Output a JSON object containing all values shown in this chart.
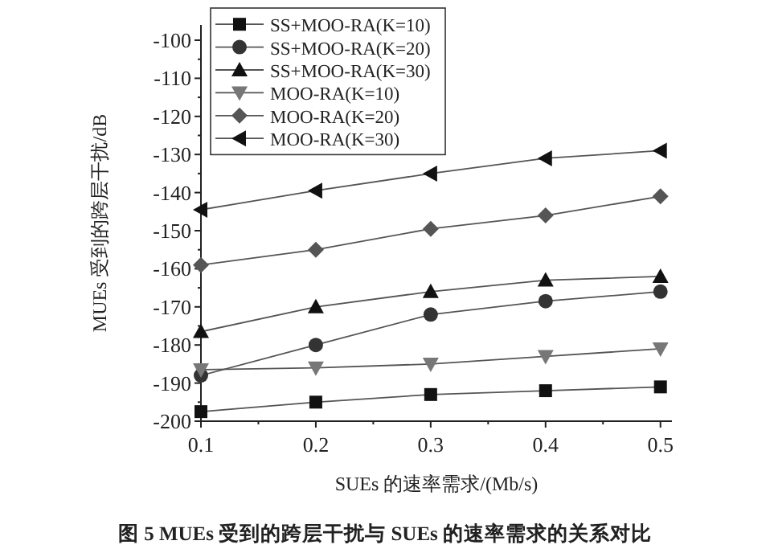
{
  "chart_data": {
    "type": "line",
    "title": "图 5  MUEs 受到的跨层干扰与 SUEs 的速率需求的关系对比",
    "xlabel": "SUEs 的速率需求/(Mb/s)",
    "ylabel": "MUEs 受到的跨层干扰/dB",
    "x": [
      0.1,
      0.2,
      0.3,
      0.4,
      0.5
    ],
    "series": [
      {
        "name": "SS+MOO-RA(K=10)",
        "color": "#111111",
        "marker": "square",
        "values": [
          -197.5,
          -195,
          -193,
          -192,
          -191
        ]
      },
      {
        "name": "SS+MOO-RA(K=20)",
        "color": "#333333",
        "marker": "circle",
        "values": [
          -188,
          -180,
          -172,
          -168.5,
          -166
        ]
      },
      {
        "name": "SS+MOO-RA(K=30)",
        "color": "#111111",
        "marker": "triangle",
        "values": [
          -176.5,
          -170,
          -166,
          -163,
          -162
        ]
      },
      {
        "name": "MOO-RA(K=10)",
        "color": "#777777",
        "marker": "triangle-down",
        "values": [
          -186.5,
          -186,
          -185,
          -183,
          -181
        ]
      },
      {
        "name": "MOO-RA(K=20)",
        "color": "#555555",
        "marker": "diamond",
        "values": [
          -159,
          -155,
          -149.5,
          -146,
          -141
        ]
      },
      {
        "name": "MOO-RA(K=30)",
        "color": "#111111",
        "marker": "triangle-left",
        "values": [
          -144.5,
          -139.5,
          -135,
          -131,
          -129
        ]
      }
    ],
    "xlim": [
      0.1,
      0.51
    ],
    "ylim": [
      -200,
      -96
    ],
    "xticks": [
      0.1,
      0.2,
      0.3,
      0.4,
      0.5
    ],
    "yticks": [
      -200,
      -190,
      -180,
      -170,
      -160,
      -150,
      -140,
      -130,
      -120,
      -110,
      -100
    ],
    "grid": false,
    "legend": "top left",
    "line_style": "solid"
  }
}
